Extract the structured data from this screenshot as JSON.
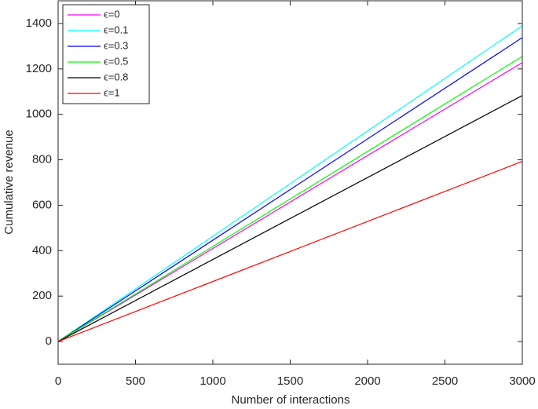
{
  "chart_data": {
    "type": "line",
    "x_label": "Number of interactions",
    "y_label": "Cumulative revenue",
    "x": [
      0,
      3000
    ],
    "series": [
      {
        "name": "ϵ=0",
        "color": "#ff00ff",
        "values": [
          0,
          1228
        ]
      },
      {
        "name": "ϵ=0.1",
        "color": "#00ffff",
        "values": [
          0,
          1390
        ]
      },
      {
        "name": "ϵ=0.3",
        "color": "#0000ff",
        "values": [
          0,
          1338
        ]
      },
      {
        "name": "ϵ=0.5",
        "color": "#00ff00",
        "values": [
          0,
          1255
        ]
      },
      {
        "name": "ϵ=0.8",
        "color": "#000000",
        "values": [
          0,
          1083
        ]
      },
      {
        "name": "ϵ=1",
        "color": "#ff0000",
        "values": [
          0,
          793
        ]
      }
    ],
    "xlim": [
      0,
      3000
    ],
    "xticks": [
      0,
      500,
      1000,
      1500,
      2000,
      2500,
      3000
    ],
    "ylim": [
      -100,
      1500
    ],
    "yticks": [
      0,
      200,
      400,
      600,
      800,
      1000,
      1200,
      1400
    ],
    "grid": false,
    "legend": "top-left"
  }
}
